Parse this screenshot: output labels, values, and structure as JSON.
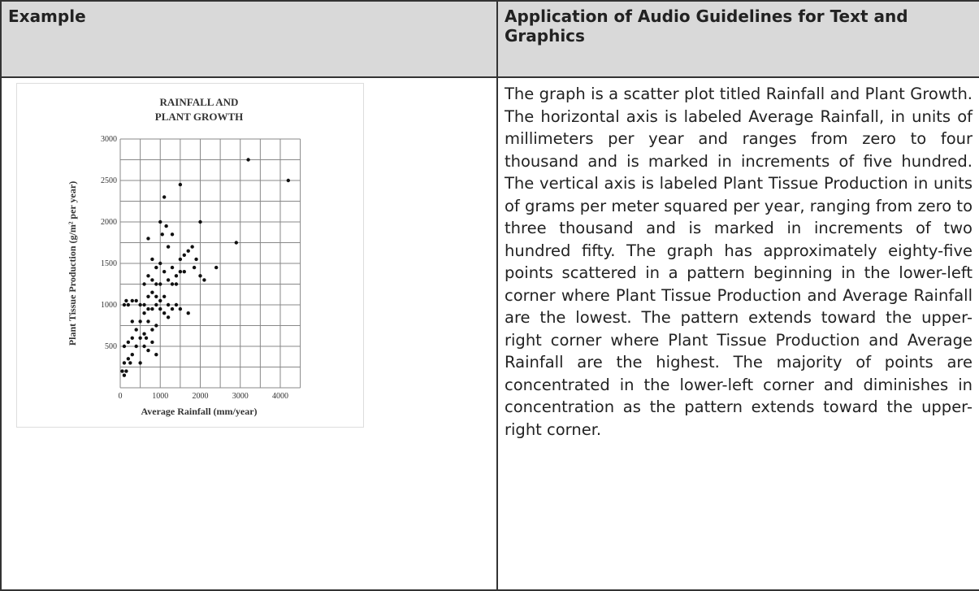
{
  "table": {
    "header": [
      "Example",
      "Application of Audio Guidelines for Text and Graphics"
    ],
    "rows": [
      [
        "The graph is a scatter plot titled Rainfall and Plant Growth. The horizontal axis is labeled Average Rainfall, in units of millimeters per year and ranges from zero to four thousand and is marked in increments of five hundred. The vertical axis is labeled Plant Tissue Production in units of grams per meter squared per year, ranging from zero to three thousand and is marked in increments of two hundred fifty. The graph has approximately eighty-five points scattered in a pattern beginning in the lower-left corner where Plant Tissue Production and Average Rainfall are the lowest. The pattern extends toward the upper-right corner where Plant Tissue Production and Average Rainfall are the highest. The majority of points are concentrated in the lower-left corner and diminishes in concentration as the pattern extends toward the upper-right corner."
      ]
    ]
  },
  "chart_data": {
    "type": "scatter",
    "title": [
      "RAINFALL AND",
      "PLANT GROWTH"
    ],
    "xlabel": "Average Rainfall (mm/year)",
    "ylabel": "Plant Tissue Production (g/m² per year)",
    "xlim": [
      0,
      4500
    ],
    "ylim": [
      0,
      3000
    ],
    "xticks": [
      0,
      1000,
      2000,
      3000,
      4000
    ],
    "yticks": [
      500,
      1000,
      1500,
      2000,
      2500,
      3000
    ],
    "xgrid": [
      0,
      500,
      1000,
      1500,
      2000,
      2500,
      3000,
      3500,
      4000,
      4500
    ],
    "ygrid": [
      0,
      250,
      500,
      750,
      1000,
      1250,
      1500,
      1750,
      2000,
      2250,
      2500,
      2750,
      3000
    ],
    "color": "#111111",
    "x": [
      3200,
      4200,
      1500,
      1100,
      1050,
      1150,
      1000,
      2000,
      2900,
      2400,
      1300,
      1700,
      1800,
      1600,
      1900,
      2000,
      2100,
      1850,
      1500,
      1200,
      800,
      700,
      900,
      1000,
      1100,
      1300,
      1400,
      700,
      800,
      900,
      1000,
      1200,
      1300,
      600,
      1500,
      1600,
      1400,
      700,
      800,
      900,
      1000,
      1100,
      1200,
      1300,
      1400,
      1500,
      1700,
      1000,
      900,
      800,
      700,
      600,
      500,
      400,
      300,
      200,
      100,
      150,
      600,
      1100,
      1200,
      500,
      700,
      300,
      400,
      600,
      800,
      900,
      500,
      300,
      200,
      100,
      400,
      600,
      700,
      900,
      800,
      300,
      200,
      100,
      50,
      150,
      250,
      500,
      100,
      650
    ],
    "values": [
      2750,
      2500,
      2450,
      2300,
      1850,
      1950,
      2000,
      2000,
      1750,
      1450,
      1850,
      1650,
      1700,
      1600,
      1550,
      1350,
      1300,
      1450,
      1550,
      1700,
      1550,
      1800,
      1450,
      1500,
      1400,
      1450,
      1350,
      1350,
      1300,
      1250,
      1250,
      1300,
      1250,
      1250,
      1400,
      1400,
      1250,
      1100,
      1150,
      1100,
      1050,
      1100,
      1000,
      950,
      1000,
      950,
      900,
      950,
      1000,
      950,
      950,
      900,
      1000,
      1050,
      1050,
      1000,
      1000,
      1050,
      1000,
      900,
      850,
      800,
      800,
      800,
      700,
      650,
      700,
      750,
      600,
      600,
      550,
      500,
      500,
      500,
      450,
      400,
      550,
      400,
      350,
      300,
      200,
      200,
      300,
      300,
      150,
      600
    ]
  }
}
